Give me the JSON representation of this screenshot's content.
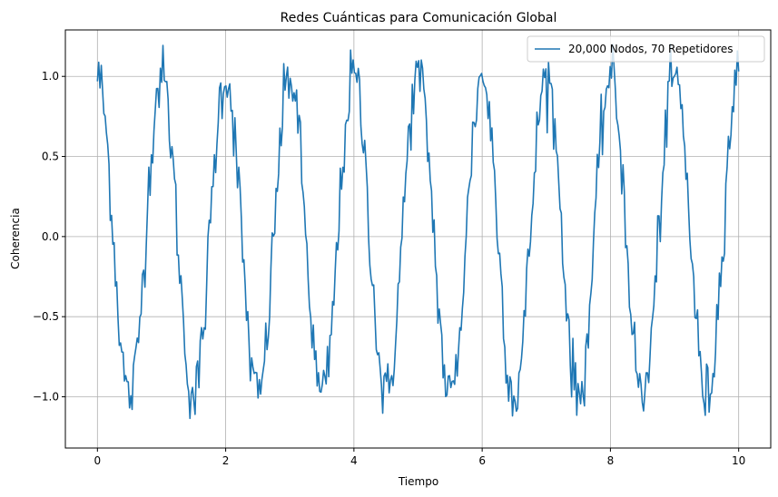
{
  "chart_data": {
    "type": "line",
    "title": "Redes Cuánticas para Comunicación Global",
    "xlabel": "Tiempo",
    "ylabel": "Coherencia",
    "xlim": [
      -0.5,
      10.5
    ],
    "ylim": [
      -1.32,
      1.29
    ],
    "xticks": [
      0,
      2,
      4,
      6,
      8,
      10
    ],
    "xtick_labels": [
      "0",
      "2",
      "4",
      "6",
      "8",
      "10"
    ],
    "yticks": [
      -1.0,
      -0.5,
      0.0,
      0.5,
      1.0
    ],
    "ytick_labels": [
      "−1.0",
      "−0.5",
      "0.0",
      "0.5",
      "1.0"
    ],
    "grid": true,
    "legend_position": "top-right",
    "series": [
      {
        "name": "20,000 Nodos, 70 Repetidores",
        "color": "#1f77b4",
        "function": "cos(2*pi*x) + 0.1*noise",
        "x_range": [
          0,
          10
        ],
        "points": 500,
        "period": 1.0,
        "amplitude": 1.0,
        "noise_amplitude": 0.1
      }
    ]
  }
}
